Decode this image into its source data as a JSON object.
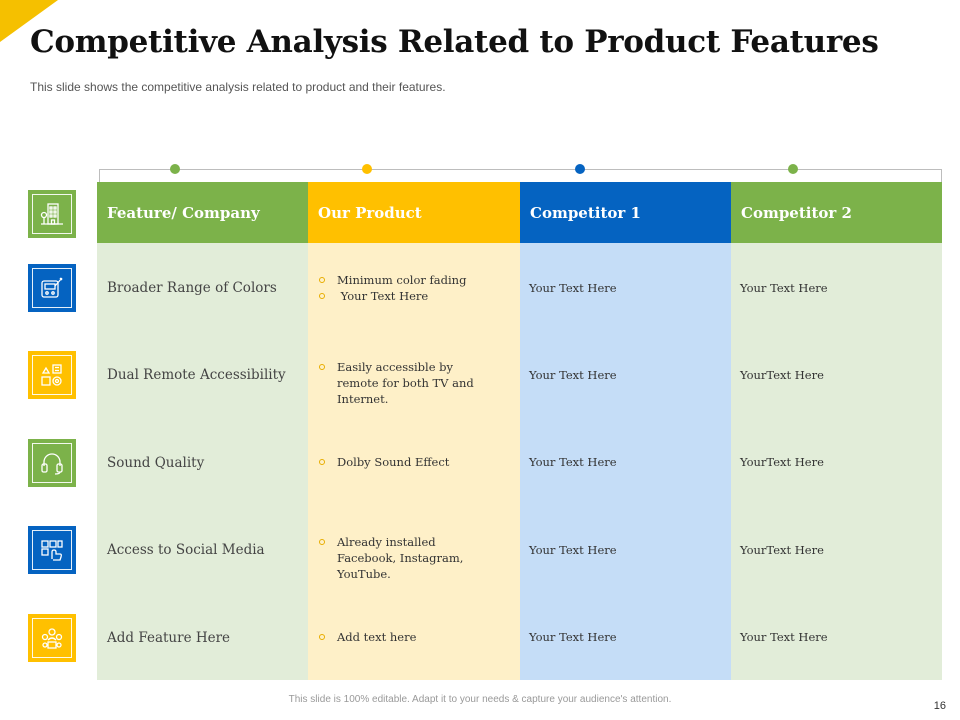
{
  "title": "Competitive Analysis Related to Product Features",
  "subtitle": "This slide shows the competitive analysis related to product and their features.",
  "colors": {
    "green": "#7cb24a",
    "yellow": "#ffc000",
    "blue": "#0563c1",
    "green_light": "#e2edd9",
    "yellow_light": "#fef0c8",
    "blue_light": "#c5ddf7"
  },
  "headers": [
    "Feature/ Company",
    "Our Product",
    "Competitor 1",
    "Competitor 2"
  ],
  "rows": [
    {
      "icon": "building-icon",
      "feature": "Broader Range of Colors",
      "our_product": [
        "Minimum color fading",
        " Your Text Here"
      ],
      "competitor1": "Your Text Here",
      "competitor2": "Your Text Here"
    },
    {
      "icon": "remote-icon",
      "feature": "Dual Remote Accessibility",
      "our_product": [
        "Easily accessible by remote for both TV and Internet."
      ],
      "competitor1": "Your Text Here",
      "competitor2": "YourText Here"
    },
    {
      "icon": "headphones-icon",
      "feature": "Sound Quality",
      "our_product": [
        "Dolby Sound Effect"
      ],
      "competitor1": "Your Text Here",
      "competitor2": "YourText Here"
    },
    {
      "icon": "social-media-icon",
      "feature": "Access to Social Media",
      "our_product": [
        "Already installed Facebook, Instagram, YouTube."
      ],
      "competitor1": "Your Text Here",
      "competitor2": "YourText Here"
    },
    {
      "icon": "team-icon",
      "feature": "Add Feature Here",
      "our_product": [
        "Add text here"
      ],
      "competitor1": "Your Text Here",
      "competitor2": "Your Text Here"
    }
  ],
  "footer": "This slide is 100% editable. Adapt it to your needs & capture your audience's attention.",
  "page_number": "16"
}
